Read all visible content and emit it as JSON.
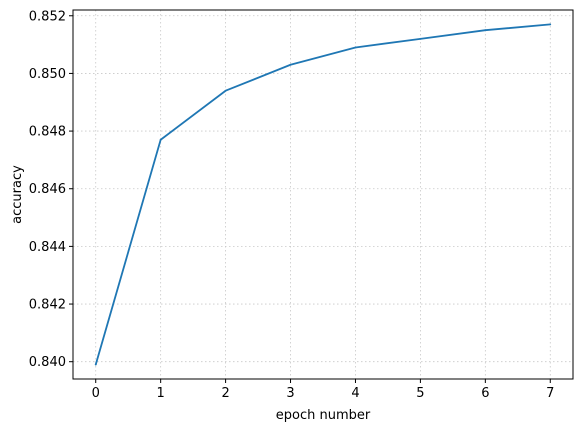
{
  "chart_data": {
    "type": "line",
    "title": "",
    "xlabel": "epoch number",
    "ylabel": "accuracy",
    "x": [
      0,
      1,
      2,
      3,
      4,
      5,
      6,
      7
    ],
    "series": [
      {
        "values": [
          0.8399,
          0.8477,
          0.8494,
          0.8503,
          0.8509,
          0.8512,
          0.8515,
          0.8517
        ],
        "color": "#1f77b4"
      }
    ],
    "xlim": [
      -0.35,
      7.35
    ],
    "ylim": [
      0.8394,
      0.8522
    ],
    "xticks": [
      0,
      1,
      2,
      3,
      4,
      5,
      6,
      7
    ],
    "xtick_labels": [
      "0",
      "1",
      "2",
      "3",
      "4",
      "5",
      "6",
      "7"
    ],
    "yticks": [
      0.84,
      0.842,
      0.844,
      0.846,
      0.848,
      0.85,
      0.852
    ],
    "ytick_labels": [
      "0.840",
      "0.842",
      "0.844",
      "0.846",
      "0.848",
      "0.850",
      "0.852"
    ],
    "grid": true,
    "grid_style": "dotted",
    "legend": "none"
  }
}
